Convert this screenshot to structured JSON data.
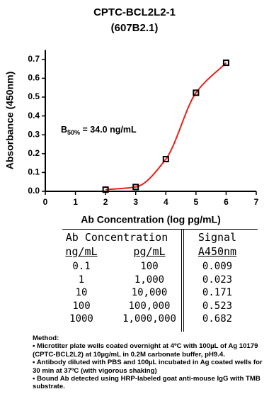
{
  "chart_data": {
    "type": "scatter-curve",
    "title": "CPTC-BCL2L2-1",
    "subtitle": "(607B2.1)",
    "x_label": "Ab Concentration (log pg/mL)",
    "y_label": "Absorbance (450nm)",
    "x": [
      2,
      3,
      4,
      5,
      6
    ],
    "values": [
      0.009,
      0.023,
      0.171,
      0.523,
      0.682
    ],
    "marker_color": "#000000",
    "line_color": "#e8201a",
    "xlim": [
      0,
      7
    ],
    "xticks": [
      0,
      1,
      2,
      3,
      4,
      5,
      6,
      7
    ],
    "ylim": [
      0,
      0.75
    ],
    "yticks": [
      {
        "value": 0,
        "label": "0.0"
      },
      0.1,
      0.2,
      0.3,
      0.4,
      0.5,
      0.6,
      0.7
    ],
    "annotation": {
      "main": "B",
      "subscript": "50%",
      "rest": " = 34.0 ng/mL"
    }
  },
  "table": {
    "group_headers": [
      "Ab Concentration",
      "Signal"
    ],
    "headers": [
      "ng/mL",
      "pg/mL",
      "A450nm"
    ],
    "rows": [
      [
        "0.1",
        "100",
        "0.009"
      ],
      [
        "1",
        "1,000",
        "0.023"
      ],
      [
        "10",
        "10,000",
        "0.171"
      ],
      [
        "100",
        "100,000",
        "0.523"
      ],
      [
        "1000",
        "1,000,000",
        "0.682"
      ]
    ]
  },
  "method": {
    "title": "Method:",
    "items": [
      "Microtiter plate wells coated overnight at 4ºC  with 100µL of Ag 10179 (CPTC-BCL2L2) at 10µg/mL in 0.2M carbonate buffer, pH9.4.",
      "Antibody diluted with PBS and 100µL incubated in Ag coated wells for 30 min at 37ºC (with vigorous shaking)",
      "Bound Ab detected using HRP-labeled goat anti-mouse IgG with TMB substrate."
    ]
  }
}
